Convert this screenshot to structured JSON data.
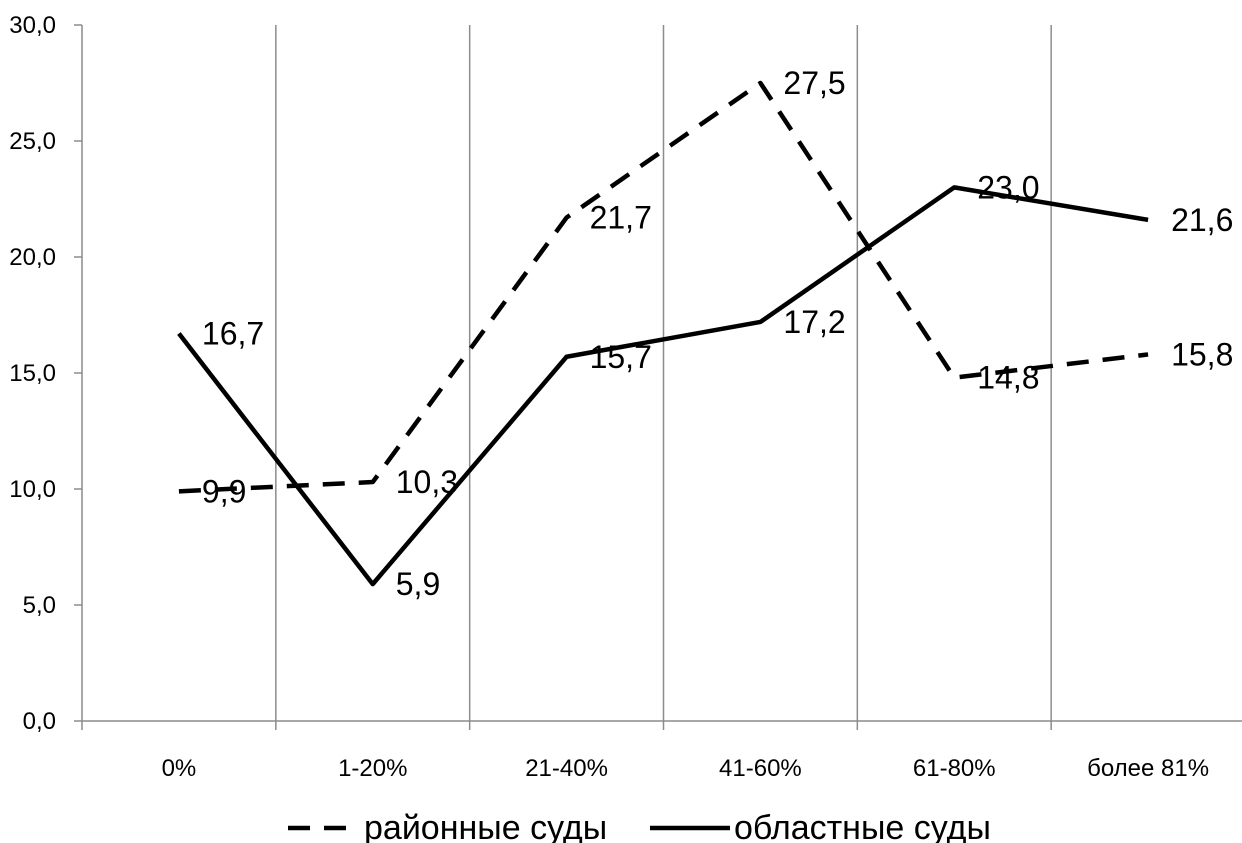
{
  "chart_data": {
    "type": "line",
    "categories": [
      "0%",
      "1-20%",
      "21-40%",
      "41-60%",
      "61-80%",
      "более 81%"
    ],
    "ylim": [
      0,
      30
    ],
    "yticks": [
      "0,0",
      "5,0",
      "10,0",
      "15,0",
      "20,0",
      "25,0",
      "30,0"
    ],
    "ytick_values": [
      0,
      5,
      10,
      15,
      20,
      25,
      30
    ],
    "grid": "vertical",
    "legend_position": "bottom",
    "series": [
      {
        "name": "районные суды",
        "style": "dashed",
        "color": "#000000",
        "values": [
          9.9,
          10.3,
          21.7,
          27.5,
          14.8,
          15.8
        ],
        "labels": [
          "9,9",
          "10,3",
          "21,7",
          "27,5",
          "14,8",
          "15,8"
        ]
      },
      {
        "name": "областные суды",
        "style": "solid",
        "color": "#000000",
        "values": [
          16.7,
          5.9,
          15.7,
          17.2,
          23.0,
          21.6
        ],
        "labels": [
          "16,7",
          "5,9",
          "15,7",
          "17,2",
          "23,0",
          "21,6"
        ]
      }
    ]
  }
}
